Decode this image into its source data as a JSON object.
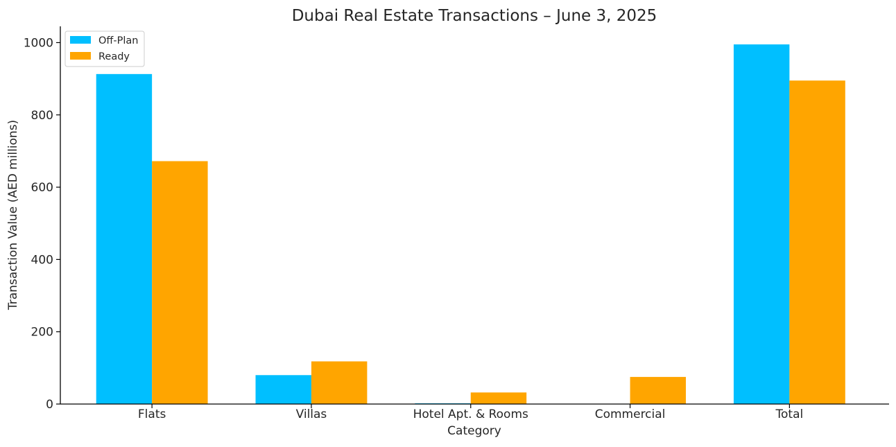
{
  "chart_data": {
    "type": "bar",
    "title": "Dubai Real Estate Transactions – June 3, 2025",
    "xlabel": "Category",
    "ylabel": "Transaction Value (AED millions)",
    "categories": [
      "Flats",
      "Villas",
      "Hotel Apt. & Rooms",
      "Commercial",
      "Total"
    ],
    "series": [
      {
        "name": "Off-Plan",
        "color": "#00bfff",
        "values": [
          913,
          80,
          2,
          0,
          995
        ]
      },
      {
        "name": "Ready",
        "color": "#ffa500",
        "values": [
          672,
          118,
          32,
          75,
          895
        ]
      }
    ],
    "ylim": [
      0,
      1045
    ],
    "yticks": [
      0,
      200,
      400,
      600,
      800,
      1000
    ],
    "grid": false,
    "legend_position": "top-left"
  }
}
